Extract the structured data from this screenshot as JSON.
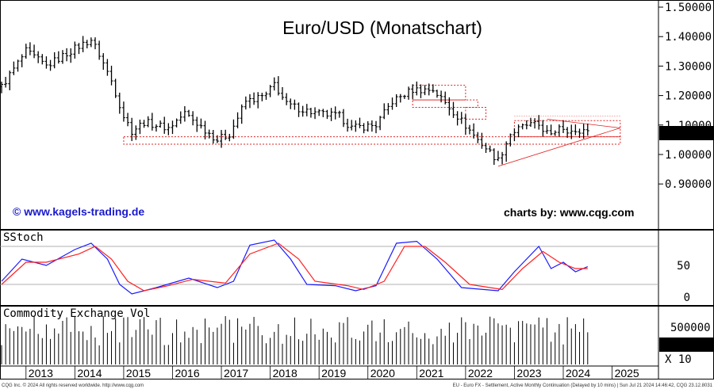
{
  "title": "Euro/USD (Monatschart)",
  "credit_left": "© www.kagels-trading.de",
  "credit_right": "charts by: www.cqg.com",
  "footer_left": "CQG Inc. © 2024 All rights reserved worldwide. http://www.cqg.com",
  "footer_right": "EU - Euro FX - Settlement, Active Monthly Continuation (Delayed by 10 mins) | Sun Jul 21 2024 14:46:42, CQG 23.12.8031",
  "colors": {
    "price": "#000000",
    "fast": "#1a1aff",
    "slow": "#ff2020",
    "box": "#e02020",
    "last_box": "#000000"
  },
  "chart_data": [
    {
      "type": "ohlc",
      "title": "Euro/USD (Monatschart)",
      "period": "monthly",
      "y_ticks": [
        "1.50000",
        "1.40000",
        "1.30000",
        "1.20000",
        "1.10000",
        "1.00000",
        "0.90000"
      ],
      "ylim": [
        0.86,
        1.51
      ],
      "last_value": "1.09080",
      "x_labels": [
        "2013",
        "2014",
        "2015",
        "2016",
        "2017",
        "2018",
        "2019",
        "2020",
        "2021",
        "2022",
        "2023",
        "2024",
        "2025"
      ],
      "x_range": [
        "2012-07",
        "2025-12"
      ],
      "series_approx": [
        {
          "t": "2012-07",
          "c": 1.23
        },
        {
          "t": "2013-01",
          "c": 1.35
        },
        {
          "t": "2013-06",
          "c": 1.3
        },
        {
          "t": "2014-01",
          "c": 1.36
        },
        {
          "t": "2014-05",
          "c": 1.39
        },
        {
          "t": "2014-07",
          "c": 1.34
        },
        {
          "t": "2014-10",
          "c": 1.25
        },
        {
          "t": "2015-01",
          "c": 1.13
        },
        {
          "t": "2015-03",
          "c": 1.08
        },
        {
          "t": "2015-06",
          "c": 1.11
        },
        {
          "t": "2015-12",
          "c": 1.09
        },
        {
          "t": "2016-04",
          "c": 1.14
        },
        {
          "t": "2016-12",
          "c": 1.05
        },
        {
          "t": "2017-03",
          "c": 1.07
        },
        {
          "t": "2017-07",
          "c": 1.18
        },
        {
          "t": "2017-12",
          "c": 1.2
        },
        {
          "t": "2018-02",
          "c": 1.24
        },
        {
          "t": "2018-05",
          "c": 1.17
        },
        {
          "t": "2018-12",
          "c": 1.14
        },
        {
          "t": "2019-06",
          "c": 1.13
        },
        {
          "t": "2019-09",
          "c": 1.09
        },
        {
          "t": "2020-03",
          "c": 1.1
        },
        {
          "t": "2020-07",
          "c": 1.18
        },
        {
          "t": "2020-12",
          "c": 1.22
        },
        {
          "t": "2021-05",
          "c": 1.22
        },
        {
          "t": "2021-11",
          "c": 1.13
        },
        {
          "t": "2022-04",
          "c": 1.05
        },
        {
          "t": "2022-09",
          "c": 0.98
        },
        {
          "t": "2022-12",
          "c": 1.07
        },
        {
          "t": "2023-04",
          "c": 1.1
        },
        {
          "t": "2023-07",
          "c": 1.1
        },
        {
          "t": "2023-10",
          "c": 1.06
        },
        {
          "t": "2023-12",
          "c": 1.1
        },
        {
          "t": "2024-04",
          "c": 1.07
        },
        {
          "t": "2024-07",
          "c": 1.09
        }
      ],
      "annotations": [
        "support zone box ~1.04–1.06 (2015–2024)",
        "range box 2021 top",
        "resistance box 2023–2024",
        "converging triangle 2022–2024"
      ]
    },
    {
      "type": "line",
      "title": "SStoch",
      "y_ticks": [
        "50",
        "0"
      ],
      "ylim": [
        0,
        100
      ],
      "reference_lines": [
        20,
        80
      ],
      "series": [
        {
          "color": "#1a1aff",
          "values_approx": [
            {
              "t": "2012-07",
              "v": 25
            },
            {
              "t": "2012-12",
              "v": 60
            },
            {
              "t": "2013-06",
              "v": 50
            },
            {
              "t": "2014-01",
              "v": 75
            },
            {
              "t": "2014-05",
              "v": 85
            },
            {
              "t": "2014-09",
              "v": 60
            },
            {
              "t": "2014-12",
              "v": 20
            },
            {
              "t": "2015-03",
              "v": 5
            },
            {
              "t": "2015-09",
              "v": 15
            },
            {
              "t": "2016-05",
              "v": 30
            },
            {
              "t": "2016-12",
              "v": 15
            },
            {
              "t": "2017-04",
              "v": 25
            },
            {
              "t": "2017-08",
              "v": 82
            },
            {
              "t": "2018-02",
              "v": 90
            },
            {
              "t": "2018-06",
              "v": 60
            },
            {
              "t": "2018-10",
              "v": 20
            },
            {
              "t": "2019-05",
              "v": 18
            },
            {
              "t": "2019-10",
              "v": 10
            },
            {
              "t": "2020-03",
              "v": 18
            },
            {
              "t": "2020-08",
              "v": 85
            },
            {
              "t": "2021-01",
              "v": 88
            },
            {
              "t": "2021-06",
              "v": 60
            },
            {
              "t": "2021-12",
              "v": 15
            },
            {
              "t": "2022-09",
              "v": 10
            },
            {
              "t": "2023-01",
              "v": 40
            },
            {
              "t": "2023-07",
              "v": 80
            },
            {
              "t": "2023-10",
              "v": 45
            },
            {
              "t": "2024-01",
              "v": 55
            },
            {
              "t": "2024-04",
              "v": 40
            },
            {
              "t": "2024-07",
              "v": 48
            }
          ]
        },
        {
          "color": "#ff2020",
          "values_approx": [
            {
              "t": "2012-07",
              "v": 20
            },
            {
              "t": "2013-01",
              "v": 55
            },
            {
              "t": "2013-06",
              "v": 55
            },
            {
              "t": "2014-02",
              "v": 68
            },
            {
              "t": "2014-06",
              "v": 80
            },
            {
              "t": "2014-10",
              "v": 60
            },
            {
              "t": "2015-02",
              "v": 25
            },
            {
              "t": "2015-06",
              "v": 10
            },
            {
              "t": "2015-12",
              "v": 18
            },
            {
              "t": "2016-06",
              "v": 28
            },
            {
              "t": "2017-02",
              "v": 22
            },
            {
              "t": "2017-08",
              "v": 68
            },
            {
              "t": "2018-03",
              "v": 85
            },
            {
              "t": "2018-08",
              "v": 60
            },
            {
              "t": "2018-12",
              "v": 25
            },
            {
              "t": "2019-08",
              "v": 18
            },
            {
              "t": "2019-12",
              "v": 12
            },
            {
              "t": "2020-05",
              "v": 25
            },
            {
              "t": "2020-10",
              "v": 80
            },
            {
              "t": "2021-03",
              "v": 80
            },
            {
              "t": "2021-08",
              "v": 55
            },
            {
              "t": "2022-02",
              "v": 20
            },
            {
              "t": "2022-10",
              "v": 12
            },
            {
              "t": "2023-03",
              "v": 45
            },
            {
              "t": "2023-08",
              "v": 72
            },
            {
              "t": "2023-12",
              "v": 55
            },
            {
              "t": "2024-04",
              "v": 45
            },
            {
              "t": "2024-07",
              "v": 45
            }
          ]
        }
      ]
    },
    {
      "type": "bar",
      "title": "Commodity Exchange Vol",
      "y_ticks": [
        "500000"
      ],
      "last_value": "266470",
      "multiplier": "X 10"
    }
  ]
}
